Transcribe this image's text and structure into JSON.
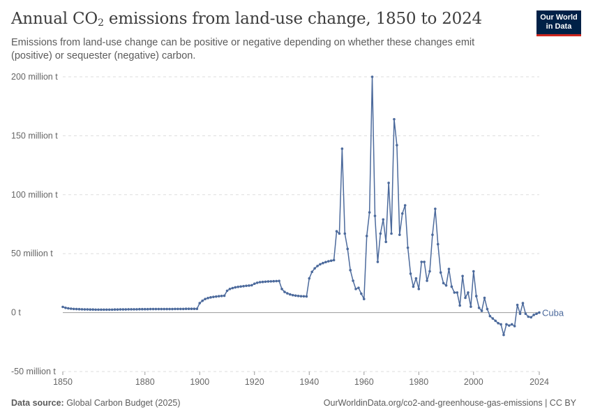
{
  "header": {
    "title": "Annual CO",
    "title_sub": "2",
    "title_rest": " emissions from land-use change, 1850 to 2024",
    "subtitle": "Emissions from land-use change can be positive or negative depending on whether these changes emit (positive) or sequester (negative) carbon."
  },
  "logo": {
    "line1": "Our World",
    "line2": "in Data"
  },
  "footer": {
    "source_label": "Data source:",
    "source_text": " Global Carbon Budget (2025)",
    "url_license": "OurWorldinData.org/co2-and-greenhouse-gas-emissions | CC BY"
  },
  "colors": {
    "series": "#4c6a9c",
    "grid": "#dddddd",
    "zero": "#999999"
  },
  "chart_data": {
    "type": "line",
    "title": "Annual CO₂ emissions from land-use change, 1850 to 2024",
    "xlim": [
      1850,
      2024
    ],
    "ylim": [
      -50000000,
      200000000
    ],
    "y_ticks": [
      {
        "value": -50000000,
        "label": "-50 million t"
      },
      {
        "value": 0,
        "label": "0 t"
      },
      {
        "value": 50000000,
        "label": "50 million t"
      },
      {
        "value": 100000000,
        "label": "100 million t"
      },
      {
        "value": 150000000,
        "label": "150 million t"
      },
      {
        "value": 200000000,
        "label": "200 million t"
      }
    ],
    "x_ticks": [
      {
        "value": 1850,
        "label": "1850"
      },
      {
        "value": 1880,
        "label": "1880"
      },
      {
        "value": 1900,
        "label": "1900"
      },
      {
        "value": 1920,
        "label": "1920"
      },
      {
        "value": 1940,
        "label": "1940"
      },
      {
        "value": 1960,
        "label": "1960"
      },
      {
        "value": 1980,
        "label": "1980"
      },
      {
        "value": 2000,
        "label": "2000"
      },
      {
        "value": 2024,
        "label": "2024"
      }
    ],
    "grid": true,
    "series": [
      {
        "name": "Cuba",
        "points": [
          [
            1850,
            4.8
          ],
          [
            1851,
            4.0
          ],
          [
            1852,
            3.6
          ],
          [
            1853,
            3.3
          ],
          [
            1854,
            3.1
          ],
          [
            1855,
            3.0
          ],
          [
            1856,
            2.9
          ],
          [
            1857,
            2.8
          ],
          [
            1858,
            2.7
          ],
          [
            1859,
            2.7
          ],
          [
            1860,
            2.6
          ],
          [
            1861,
            2.6
          ],
          [
            1862,
            2.5
          ],
          [
            1863,
            2.5
          ],
          [
            1864,
            2.5
          ],
          [
            1865,
            2.5
          ],
          [
            1866,
            2.5
          ],
          [
            1867,
            2.5
          ],
          [
            1868,
            2.5
          ],
          [
            1869,
            2.6
          ],
          [
            1870,
            2.6
          ],
          [
            1871,
            2.7
          ],
          [
            1872,
            2.7
          ],
          [
            1873,
            2.7
          ],
          [
            1874,
            2.8
          ],
          [
            1875,
            2.8
          ],
          [
            1876,
            2.8
          ],
          [
            1877,
            2.8
          ],
          [
            1878,
            2.9
          ],
          [
            1879,
            2.9
          ],
          [
            1880,
            2.9
          ],
          [
            1881,
            2.9
          ],
          [
            1882,
            3.0
          ],
          [
            1883,
            3.0
          ],
          [
            1884,
            3.0
          ],
          [
            1885,
            3.0
          ],
          [
            1886,
            3.0
          ],
          [
            1887,
            3.0
          ],
          [
            1888,
            3.0
          ],
          [
            1889,
            3.0
          ],
          [
            1890,
            3.0
          ],
          [
            1891,
            3.1
          ],
          [
            1892,
            3.1
          ],
          [
            1893,
            3.1
          ],
          [
            1894,
            3.1
          ],
          [
            1895,
            3.2
          ],
          [
            1896,
            3.2
          ],
          [
            1897,
            3.2
          ],
          [
            1898,
            3.2
          ],
          [
            1899,
            3.2
          ],
          [
            1900,
            8.0
          ],
          [
            1901,
            10.0
          ],
          [
            1902,
            11.5
          ],
          [
            1903,
            12.3
          ],
          [
            1904,
            12.9
          ],
          [
            1905,
            13.3
          ],
          [
            1906,
            13.6
          ],
          [
            1907,
            13.9
          ],
          [
            1908,
            14.1
          ],
          [
            1909,
            14.3
          ],
          [
            1910,
            18.5
          ],
          [
            1911,
            20.0
          ],
          [
            1912,
            20.8
          ],
          [
            1913,
            21.4
          ],
          [
            1914,
            21.8
          ],
          [
            1915,
            22.1
          ],
          [
            1916,
            22.4
          ],
          [
            1917,
            22.7
          ],
          [
            1918,
            22.9
          ],
          [
            1919,
            23.2
          ],
          [
            1920,
            24.5
          ],
          [
            1921,
            25.3
          ],
          [
            1922,
            25.8
          ],
          [
            1923,
            26.0
          ],
          [
            1924,
            26.2
          ],
          [
            1925,
            26.4
          ],
          [
            1926,
            26.5
          ],
          [
            1927,
            26.6
          ],
          [
            1928,
            26.7
          ],
          [
            1929,
            26.8
          ],
          [
            1930,
            20.0
          ],
          [
            1931,
            17.5
          ],
          [
            1932,
            16.3
          ],
          [
            1933,
            15.4
          ],
          [
            1934,
            14.8
          ],
          [
            1935,
            14.4
          ],
          [
            1936,
            14.1
          ],
          [
            1937,
            13.9
          ],
          [
            1938,
            13.8
          ],
          [
            1939,
            13.7
          ],
          [
            1940,
            29.0
          ],
          [
            1941,
            34.5
          ],
          [
            1942,
            37.5
          ],
          [
            1943,
            39.5
          ],
          [
            1944,
            41.0
          ],
          [
            1945,
            42.0
          ],
          [
            1946,
            42.8
          ],
          [
            1947,
            43.5
          ],
          [
            1948,
            44.0
          ],
          [
            1949,
            44.5
          ],
          [
            1950,
            69.0
          ],
          [
            1951,
            67.0
          ],
          [
            1952,
            139.0
          ],
          [
            1953,
            67.0
          ],
          [
            1954,
            54.0
          ],
          [
            1955,
            36.0
          ],
          [
            1956,
            27.0
          ],
          [
            1957,
            20.0
          ],
          [
            1958,
            21.0
          ],
          [
            1959,
            16.0
          ],
          [
            1960,
            11.5
          ],
          [
            1961,
            65.0
          ],
          [
            1962,
            85.0
          ],
          [
            1963,
            200.0
          ],
          [
            1964,
            82.0
          ],
          [
            1965,
            43.0
          ],
          [
            1966,
            67.0
          ],
          [
            1967,
            79.0
          ],
          [
            1968,
            60.0
          ],
          [
            1969,
            110.0
          ],
          [
            1970,
            67.0
          ],
          [
            1971,
            164.0
          ],
          [
            1972,
            142.0
          ],
          [
            1973,
            66.0
          ],
          [
            1974,
            84.0
          ],
          [
            1975,
            91.0
          ],
          [
            1976,
            55.0
          ],
          [
            1977,
            33.0
          ],
          [
            1978,
            22.0
          ],
          [
            1979,
            29.0
          ],
          [
            1980,
            20.0
          ],
          [
            1981,
            43.0
          ],
          [
            1982,
            43.0
          ],
          [
            1983,
            27.0
          ],
          [
            1984,
            35.0
          ],
          [
            1985,
            66.0
          ],
          [
            1986,
            88.0
          ],
          [
            1987,
            58.0
          ],
          [
            1988,
            34.0
          ],
          [
            1989,
            25.0
          ],
          [
            1990,
            23.0
          ],
          [
            1991,
            37.0
          ],
          [
            1992,
            22.0
          ],
          [
            1993,
            17.0
          ],
          [
            1994,
            17.0
          ],
          [
            1995,
            6.0
          ],
          [
            1996,
            31.0
          ],
          [
            1997,
            12.5
          ],
          [
            1998,
            17.0
          ],
          [
            1999,
            5.0
          ],
          [
            2000,
            35.0
          ],
          [
            2001,
            14.0
          ],
          [
            2002,
            4.0
          ],
          [
            2003,
            1.5
          ],
          [
            2004,
            12.5
          ],
          [
            2005,
            3.0
          ],
          [
            2006,
            -3.0
          ],
          [
            2007,
            -5.0
          ],
          [
            2008,
            -7.0
          ],
          [
            2009,
            -9.0
          ],
          [
            2010,
            -10.0
          ],
          [
            2011,
            -19.0
          ],
          [
            2012,
            -10.0
          ],
          [
            2013,
            -11.0
          ],
          [
            2014,
            -10.0
          ],
          [
            2015,
            -11.5
          ],
          [
            2016,
            6.5
          ],
          [
            2017,
            -1.0
          ],
          [
            2018,
            8.0
          ],
          [
            2019,
            -1.0
          ],
          [
            2020,
            -3.5
          ],
          [
            2021,
            -4.0
          ],
          [
            2022,
            -2.0
          ],
          [
            2023,
            -1.0
          ],
          [
            2024,
            0.0
          ]
        ],
        "unit_scale": 1000000
      }
    ]
  }
}
